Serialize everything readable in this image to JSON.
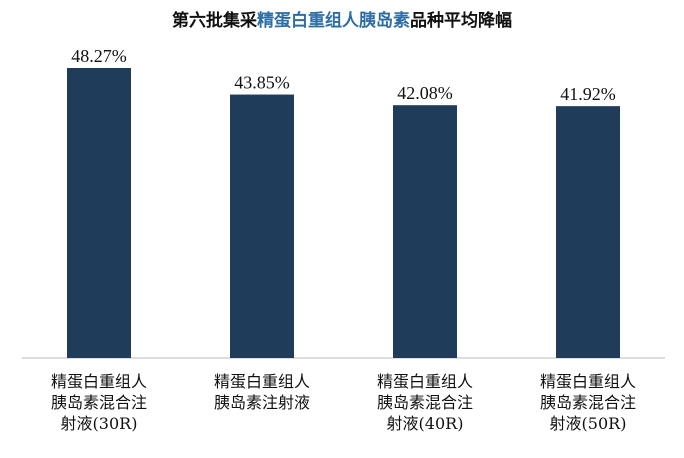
{
  "chart_data": {
    "type": "bar",
    "title_parts": [
      "第六批集采",
      "精蛋白重组人胰岛素",
      "品种平均降幅"
    ],
    "title": "第六批集采精蛋白重组人胰岛素品种平均降幅",
    "categories": [
      "精蛋白重组人胰岛素混合注射液(30R)",
      "精蛋白重组人胰岛素注射液",
      "精蛋白重组人胰岛素混合注射液(40R)",
      "精蛋白重组人胰岛素混合注射液(50R)"
    ],
    "category_lines": [
      [
        "精蛋白重组人",
        "胰岛素混合注",
        "射液(30R)"
      ],
      [
        "精蛋白重组人",
        "胰岛素注射液"
      ],
      [
        "精蛋白重组人",
        "胰岛素混合注",
        "射液(40R)"
      ],
      [
        "精蛋白重组人",
        "胰岛素混合注",
        "射液(50R)"
      ]
    ],
    "values": [
      48.27,
      43.85,
      42.08,
      41.92
    ],
    "labels": [
      "48.27%",
      "43.85%",
      "42.08%",
      "41.92%"
    ],
    "ylim": [
      0,
      50
    ],
    "xlabel": "",
    "ylabel": "",
    "grid": false,
    "bar_color": "#1f3c5a",
    "highlight_color": "#2e6da4"
  }
}
